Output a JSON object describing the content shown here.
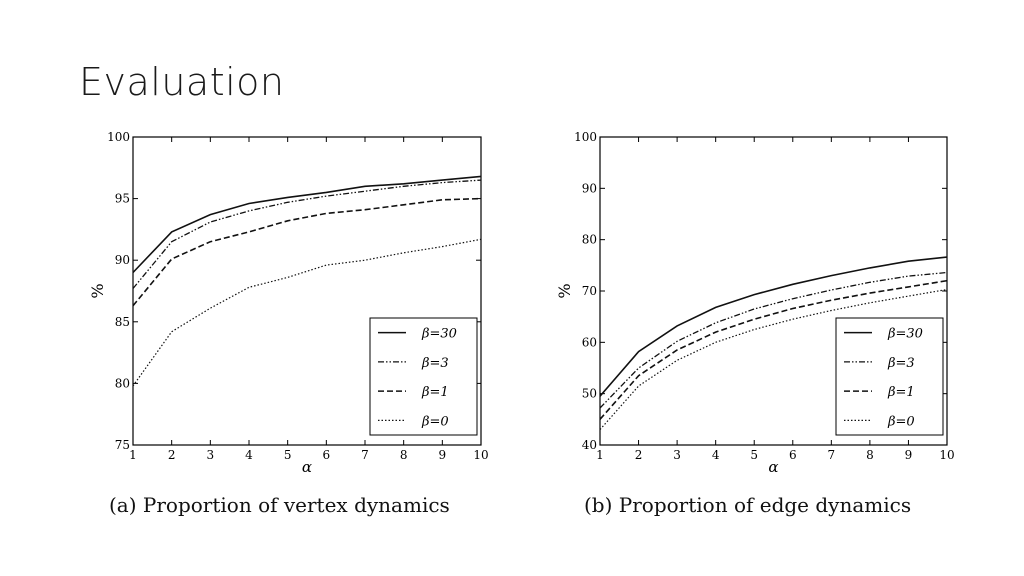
{
  "slide": {
    "title": "Evaluation"
  },
  "legend_prefix": "β",
  "chart_data": [
    {
      "type": "line",
      "caption": "(a) Proportion of vertex dynamics",
      "xlabel": "α",
      "ylabel": "%",
      "xlim": [
        1,
        10
      ],
      "ylim": [
        75,
        100
      ],
      "x": [
        1,
        2,
        3,
        4,
        5,
        6,
        7,
        8,
        9,
        10
      ],
      "xticks": [
        "1",
        "2",
        "3",
        "4",
        "5",
        "6",
        "7",
        "8",
        "9",
        "10"
      ],
      "yticks": [
        "75",
        "80",
        "85",
        "90",
        "95",
        "100"
      ],
      "grid": false,
      "legend_position": "bottom-right",
      "series": [
        {
          "name": "=30",
          "style": "solid",
          "values": [
            89.0,
            92.3,
            93.7,
            94.6,
            95.1,
            95.5,
            96.0,
            96.2,
            96.5,
            96.8
          ]
        },
        {
          "name": "=3",
          "style": "dashdot",
          "values": [
            87.7,
            91.5,
            93.1,
            94.0,
            94.7,
            95.2,
            95.6,
            96.0,
            96.3,
            96.5
          ]
        },
        {
          "name": "=1",
          "style": "dashed",
          "values": [
            86.3,
            90.1,
            91.5,
            92.3,
            93.2,
            93.8,
            94.1,
            94.5,
            94.9,
            95.0
          ]
        },
        {
          "name": "=0",
          "style": "dotted",
          "values": [
            79.8,
            84.2,
            86.1,
            87.8,
            88.6,
            89.6,
            90.0,
            90.6,
            91.1,
            91.7
          ]
        }
      ]
    },
    {
      "type": "line",
      "caption": "(b) Proportion of edge dynamics",
      "xlabel": "α",
      "ylabel": "%",
      "xlim": [
        1,
        10
      ],
      "ylim": [
        40,
        100
      ],
      "x": [
        1,
        2,
        3,
        4,
        5,
        6,
        7,
        8,
        9,
        10
      ],
      "xticks": [
        "1",
        "2",
        "3",
        "4",
        "5",
        "6",
        "7",
        "8",
        "9",
        "10"
      ],
      "yticks": [
        "40",
        "50",
        "60",
        "70",
        "80",
        "90",
        "100"
      ],
      "grid": false,
      "legend_position": "bottom-right",
      "series": [
        {
          "name": "=30",
          "style": "solid",
          "values": [
            49.5,
            58.2,
            63.2,
            66.8,
            69.3,
            71.3,
            73.0,
            74.5,
            75.8,
            76.6
          ]
        },
        {
          "name": "=3",
          "style": "dashdot",
          "values": [
            47.2,
            55.0,
            60.2,
            63.8,
            66.5,
            68.5,
            70.2,
            71.7,
            72.9,
            73.6
          ]
        },
        {
          "name": "=1",
          "style": "dashed",
          "values": [
            45.0,
            53.5,
            58.5,
            62.0,
            64.5,
            66.6,
            68.2,
            69.6,
            70.8,
            72.0
          ]
        },
        {
          "name": "=0",
          "style": "dotted",
          "values": [
            43.0,
            51.5,
            56.5,
            60.0,
            62.5,
            64.5,
            66.2,
            67.7,
            69.0,
            70.3
          ]
        }
      ]
    }
  ]
}
